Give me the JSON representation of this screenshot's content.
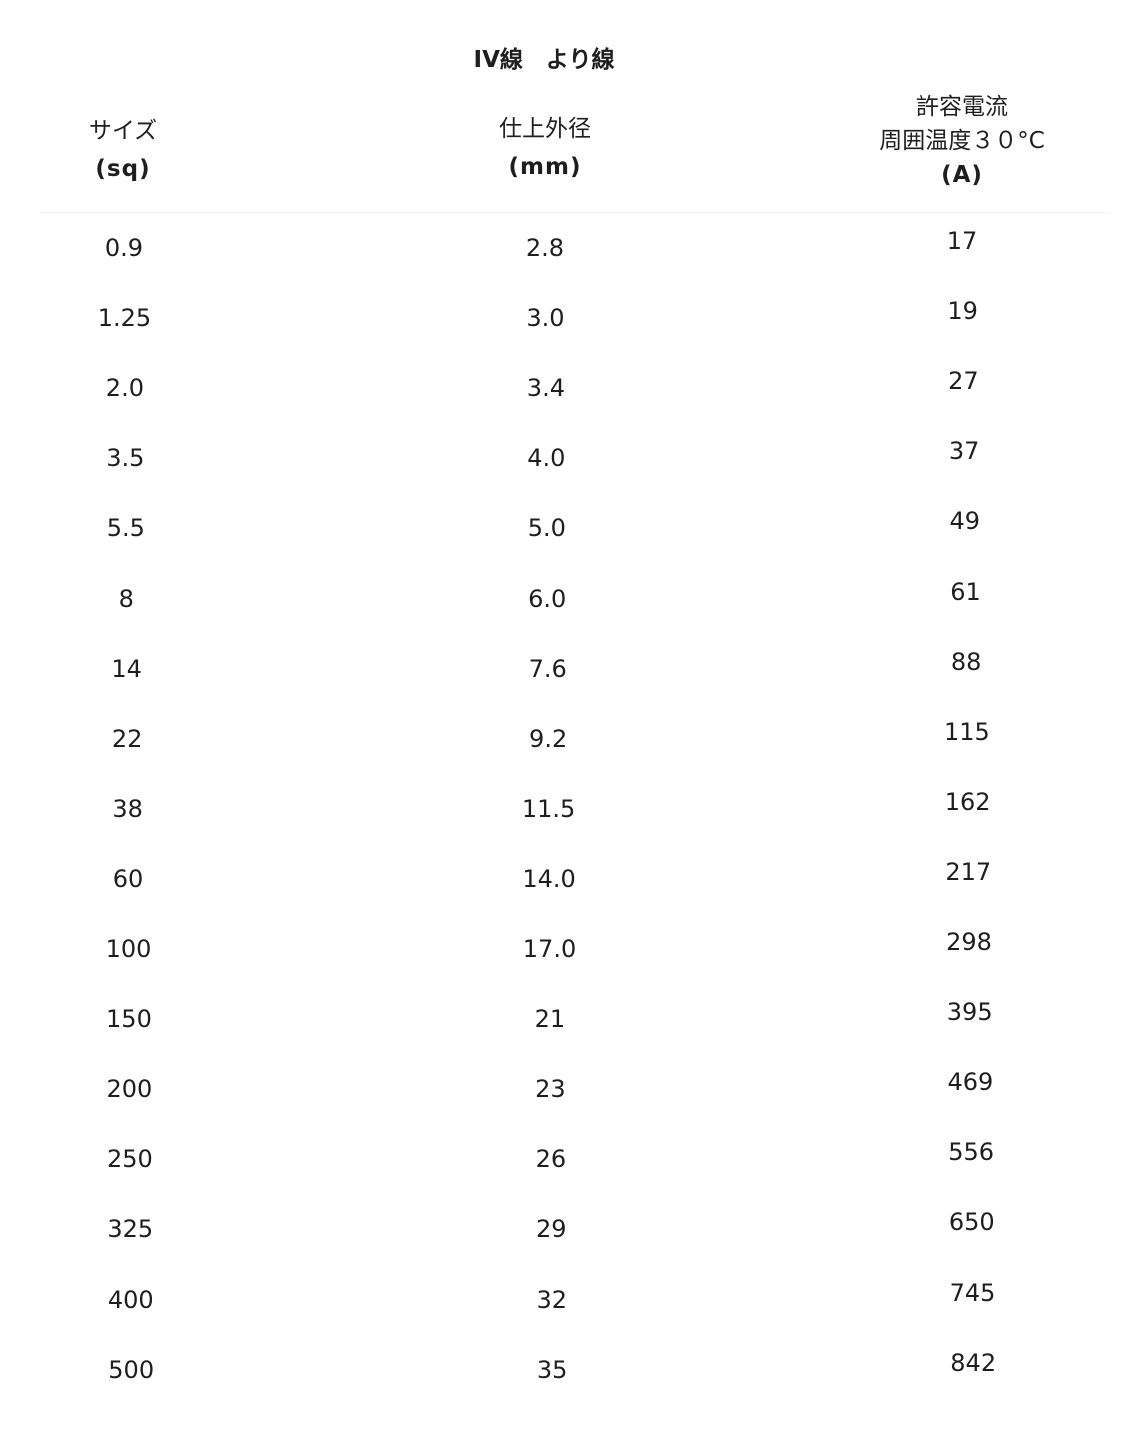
{
  "title": "IV線　より線",
  "headers": {
    "size": {
      "label": "サイズ",
      "unit": "(sq)"
    },
    "diameter": {
      "label": "仕上外径",
      "unit": "(mm)"
    },
    "current": {
      "label": "許容電流",
      "sublabel": "周囲温度３０°C",
      "unit": "(A)"
    }
  },
  "rows": [
    {
      "size": "0.9",
      "diameter": "2.8",
      "current": "17"
    },
    {
      "size": "1.25",
      "diameter": "3.0",
      "current": "19"
    },
    {
      "size": "2.0",
      "diameter": "3.4",
      "current": "27"
    },
    {
      "size": "3.5",
      "diameter": "4.0",
      "current": "37"
    },
    {
      "size": "5.5",
      "diameter": "5.0",
      "current": "49"
    },
    {
      "size": "8",
      "diameter": "6.0",
      "current": "61"
    },
    {
      "size": "14",
      "diameter": "7.6",
      "current": "88"
    },
    {
      "size": "22",
      "diameter": "9.2",
      "current": "115"
    },
    {
      "size": "38",
      "diameter": "11.5",
      "current": "162"
    },
    {
      "size": "60",
      "diameter": "14.0",
      "current": "217"
    },
    {
      "size": "100",
      "diameter": "17.0",
      "current": "298"
    },
    {
      "size": "150",
      "diameter": "21",
      "current": "395"
    },
    {
      "size": "200",
      "diameter": "23",
      "current": "469"
    },
    {
      "size": "250",
      "diameter": "26",
      "current": "556"
    },
    {
      "size": "325",
      "diameter": "29",
      "current": "650"
    },
    {
      "size": "400",
      "diameter": "32",
      "current": "745"
    },
    {
      "size": "500",
      "diameter": "35",
      "current": "842"
    }
  ]
}
